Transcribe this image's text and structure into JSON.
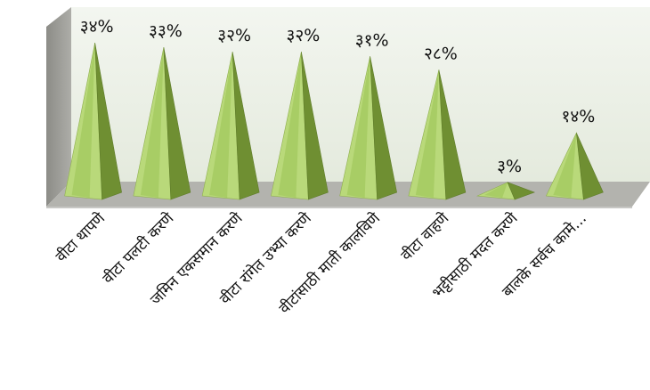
{
  "chart_data": {
    "type": "bar",
    "shape": "pyramid",
    "categories": [
      "वीटा थापणे",
      "वीटा पलटी करणे",
      "जमिन एकसमान करणे",
      "वीटा रांगेत उभ्या करणे",
      "वीटांसाठी माती कालविणे",
      "वीटा वाहणे",
      "भट्टीसाठी मदत करणे",
      "बालके सर्वच कामे..."
    ],
    "values": [
      34,
      33,
      32,
      32,
      31,
      28,
      3,
      14
    ],
    "data_labels": [
      "३४%",
      "३३%",
      "३२%",
      "३२%",
      "३१%",
      "२८%",
      "३%",
      "१४%"
    ],
    "ylim": [
      0,
      36
    ],
    "grid": false,
    "legend": "none",
    "colors": {
      "pyramid_light": "#b9d97a",
      "pyramid_mid": "#9bc253",
      "pyramid_dark": "#6f8f32",
      "back_wall": "#eef2ea",
      "side_wall": "#9c9c97",
      "floor": "#b3b3ae"
    }
  }
}
